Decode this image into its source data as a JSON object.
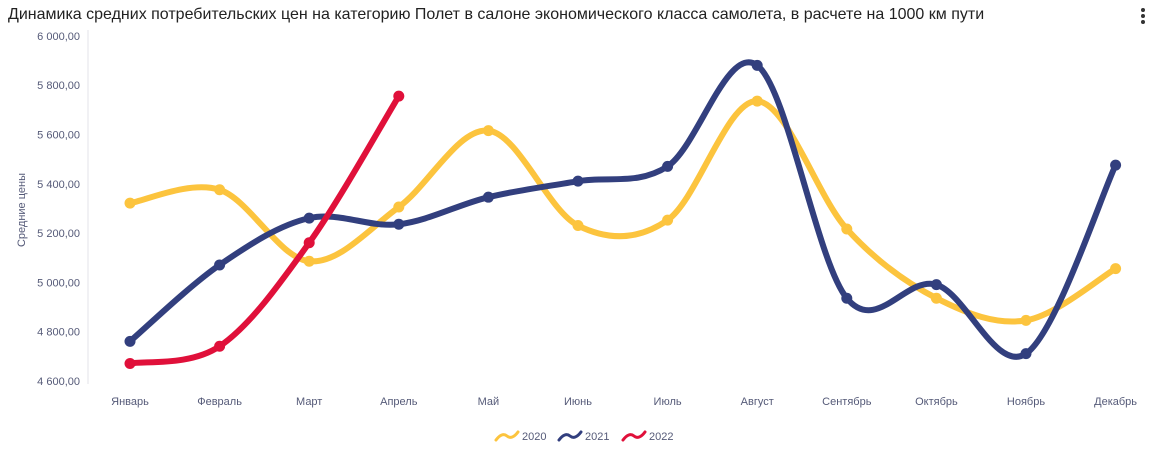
{
  "chart_data": {
    "type": "line",
    "title": "Динамика средних потребительских цен на категорию Полет в салоне экономического класса самолета, в расчете на 1000 км пути",
    "y_label": "Средние цены",
    "categories": [
      "Январь",
      "Февраль",
      "Март",
      "Апрель",
      "Май",
      "Июнь",
      "Июль",
      "Август",
      "Сентябрь",
      "Октябрь",
      "Ноябрь",
      "Декабрь"
    ],
    "series": [
      {
        "name": "2020",
        "color": "#fcc43e",
        "values": [
          5326,
          5380,
          5090,
          5310,
          5620,
          5235,
          5257,
          5740,
          5221,
          4940,
          4850,
          5060
        ]
      },
      {
        "name": "2021",
        "color": "#323f7e",
        "values": [
          4765,
          5075,
          5265,
          5240,
          5350,
          5415,
          5475,
          5885,
          4940,
          4995,
          4715,
          5480
        ]
      },
      {
        "name": "2022",
        "color": "#e0103a",
        "values": [
          4675,
          4745,
          5165,
          5760,
          null,
          null,
          null,
          null,
          null,
          null,
          null,
          null
        ]
      }
    ],
    "ylim": [
      4600,
      6000
    ],
    "yticks": [
      {
        "value": 4600,
        "label": "4 600,00"
      },
      {
        "value": 4800,
        "label": "4 800,00"
      },
      {
        "value": 5000,
        "label": "5 000,00"
      },
      {
        "value": 5200,
        "label": "5 200,00"
      },
      {
        "value": 5400,
        "label": "5 400,00"
      },
      {
        "value": 5600,
        "label": "5 600,00"
      },
      {
        "value": 5800,
        "label": "5 800,00"
      },
      {
        "value": 6000,
        "label": "6 000,00"
      }
    ],
    "grid": false,
    "legend": "bottom"
  }
}
